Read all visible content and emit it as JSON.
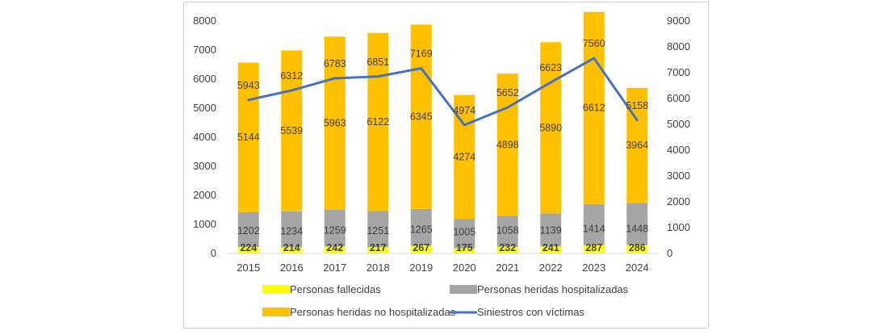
{
  "chart_data": {
    "type": "bar",
    "stacked": true,
    "categories": [
      "2015",
      "2016",
      "2017",
      "2018",
      "2019",
      "2020",
      "2021",
      "2022",
      "2023",
      "2024"
    ],
    "series": [
      {
        "name": "Personas fallecidas",
        "type": "bar",
        "axis": "left",
        "color": "#FFFF00",
        "values": [
          224,
          214,
          242,
          217,
          267,
          175,
          232,
          241,
          287,
          286
        ]
      },
      {
        "name": "Personas heridas hospitalizadas",
        "type": "bar",
        "axis": "left",
        "color": "#A5A5A5",
        "values": [
          1202,
          1234,
          1259,
          1251,
          1265,
          1005,
          1058,
          1139,
          1414,
          1448
        ]
      },
      {
        "name": "Personas heridas no hospitalizadas",
        "type": "bar",
        "axis": "left",
        "color": "#FFC000",
        "values": [
          5144,
          5539,
          5963,
          6122,
          6345,
          4274,
          4898,
          5890,
          6612,
          3964
        ]
      },
      {
        "name": "Siniestros con víctimas",
        "type": "line",
        "axis": "right",
        "color": "#4472C4",
        "values": [
          5943,
          6312,
          6783,
          6851,
          7169,
          4974,
          5652,
          6623,
          7560,
          5158
        ]
      }
    ],
    "y_left": {
      "min": 0,
      "max": 8000,
      "ticks": [
        "0",
        "1000",
        "2000",
        "3000",
        "4000",
        "5000",
        "6000",
        "7000",
        "8000"
      ]
    },
    "y_right": {
      "min": 0,
      "max": 9000,
      "ticks": [
        "0",
        "1000",
        "2000",
        "3000",
        "4000",
        "5000",
        "6000",
        "7000",
        "8000",
        "9000"
      ]
    },
    "grid": false,
    "legend_position": "bottom",
    "title": "",
    "xlabel": "",
    "ylabel": ""
  }
}
